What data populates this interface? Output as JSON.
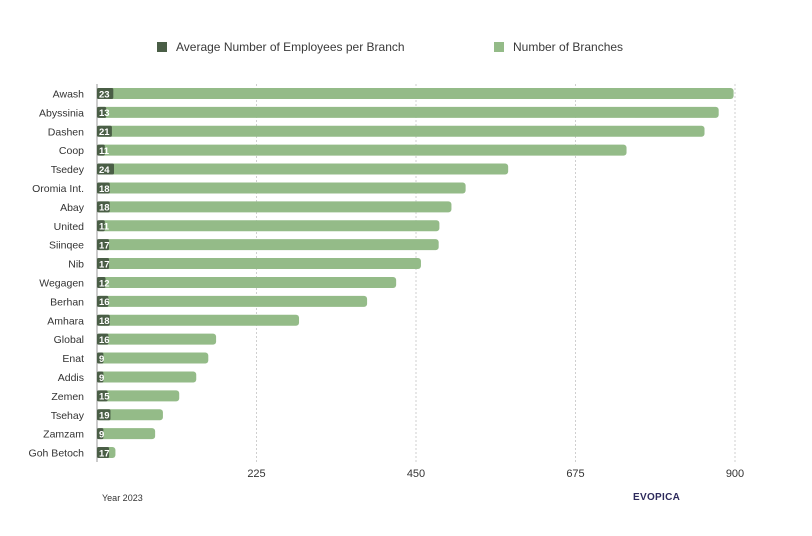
{
  "chart_data": {
    "type": "bar",
    "orientation": "horizontal",
    "categories": [
      "Awash",
      "Abyssinia",
      "Dashen",
      "Coop",
      "Tsedey",
      "Oromia Int.",
      "Abay",
      "United",
      "Siinqee",
      "Nib",
      "Wegagen",
      "Berhan",
      "Amhara",
      "Global",
      "Enat",
      "Addis",
      "Zemen",
      "Tsehay",
      "Zamzam",
      "Goh Betoch"
    ],
    "series": [
      {
        "name": "Average Number of Employees per Branch",
        "color": "#4a5e46",
        "values": [
          23,
          13,
          21,
          11,
          24,
          18,
          18,
          11,
          17,
          17,
          12,
          16,
          18,
          16,
          9,
          9,
          15,
          19,
          9,
          17
        ]
      },
      {
        "name": "Number of Branches",
        "color": "#94bb88",
        "values": [
          898,
          877,
          857,
          747,
          580,
          520,
          500,
          483,
          482,
          457,
          422,
          381,
          285,
          168,
          157,
          140,
          116,
          93,
          82,
          26
        ]
      }
    ],
    "xlim": [
      0,
      900
    ],
    "xticks": [
      225,
      450,
      675,
      900
    ],
    "grid": true,
    "legend": "top",
    "footer_left": "Year 2023",
    "footer_right": "EVOPICA"
  }
}
